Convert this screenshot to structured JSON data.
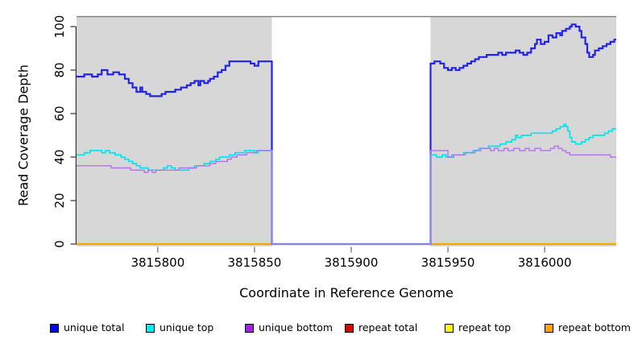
{
  "chart_data": {
    "type": "line",
    "subtype": "step",
    "title": "",
    "xlabel": "Coordinate in Reference Genome",
    "ylabel": "Read Coverage Depth",
    "xlim": [
      3815758,
      3816037
    ],
    "ylim": [
      0,
      104.8
    ],
    "x_ticks": [
      3815800,
      3815850,
      3815900,
      3815950,
      3816000
    ],
    "x_tick_labels": [
      "3815800",
      "3815850",
      "3815900",
      "3815950",
      "3816000"
    ],
    "y_ticks": [
      0,
      20,
      40,
      60,
      80,
      100
    ],
    "y_tick_labels": [
      "0",
      "20",
      "40",
      "60",
      "80",
      "100"
    ],
    "grid": false,
    "panel_background": "#d7d7d7",
    "panel_top_border_color": "#7f7f7f",
    "gap_region": {
      "x_start": 3815859,
      "x_end": 3815941,
      "fill": "#ffffff"
    },
    "legend_position": "bottom",
    "series": [
      {
        "name": "repeat total",
        "color": "#e10000",
        "width": 1.2,
        "under_gap": true,
        "points": [
          [
            3815758,
            0
          ],
          [
            3816037,
            0
          ]
        ]
      },
      {
        "name": "repeat top",
        "color": "#fdfd00",
        "width": 1.2,
        "under_gap": true,
        "points": [
          [
            3815758,
            0
          ],
          [
            3816037,
            0
          ]
        ]
      },
      {
        "name": "repeat bottom",
        "color": "#ffa500",
        "width": 2.2,
        "under_gap": true,
        "points": [
          [
            3815758,
            0
          ],
          [
            3816037,
            0
          ]
        ]
      },
      {
        "name": "unique total",
        "color": "#2222e8",
        "width": 2.2,
        "under_gap": false,
        "points": [
          [
            3815758,
            77
          ],
          [
            3815762,
            78
          ],
          [
            3815766,
            77
          ],
          [
            3815769,
            78
          ],
          [
            3815771,
            80
          ],
          [
            3815774,
            78
          ],
          [
            3815777,
            79
          ],
          [
            3815780,
            78
          ],
          [
            3815783,
            76
          ],
          [
            3815785,
            74
          ],
          [
            3815787,
            72
          ],
          [
            3815789,
            70
          ],
          [
            3815791,
            72
          ],
          [
            3815792,
            70
          ],
          [
            3815794,
            69
          ],
          [
            3815796,
            68
          ],
          [
            3815802,
            69
          ],
          [
            3815804,
            70
          ],
          [
            3815807,
            70
          ],
          [
            3815809,
            71
          ],
          [
            3815812,
            72
          ],
          [
            3815815,
            73
          ],
          [
            3815817,
            74
          ],
          [
            3815819,
            75
          ],
          [
            3815821,
            73
          ],
          [
            3815822,
            75
          ],
          [
            3815824,
            74
          ],
          [
            3815826,
            75
          ],
          [
            3815827,
            76
          ],
          [
            3815829,
            77
          ],
          [
            3815831,
            79
          ],
          [
            3815833,
            80
          ],
          [
            3815835,
            82
          ],
          [
            3815837,
            84
          ],
          [
            3815846,
            84
          ],
          [
            3815848,
            83
          ],
          [
            3815850,
            82
          ],
          [
            3815852,
            84
          ],
          [
            3815859,
            0
          ],
          [
            3815941,
            83
          ],
          [
            3815943,
            84
          ],
          [
            3815946,
            83
          ],
          [
            3815948,
            81
          ],
          [
            3815950,
            80
          ],
          [
            3815952,
            81
          ],
          [
            3815954,
            80
          ],
          [
            3815956,
            81
          ],
          [
            3815958,
            82
          ],
          [
            3815960,
            83
          ],
          [
            3815962,
            84
          ],
          [
            3815964,
            85
          ],
          [
            3815966,
            86
          ],
          [
            3815970,
            87
          ],
          [
            3815974,
            87
          ],
          [
            3815976,
            88
          ],
          [
            3815978,
            87
          ],
          [
            3815980,
            88
          ],
          [
            3815983,
            88
          ],
          [
            3815985,
            89
          ],
          [
            3815987,
            88
          ],
          [
            3815989,
            87
          ],
          [
            3815991,
            88
          ],
          [
            3815993,
            90
          ],
          [
            3815995,
            92
          ],
          [
            3815996,
            94
          ],
          [
            3815998,
            92
          ],
          [
            3816000,
            93
          ],
          [
            3816002,
            96
          ],
          [
            3816004,
            95
          ],
          [
            3816006,
            97
          ],
          [
            3816008,
            96
          ],
          [
            3816009,
            98
          ],
          [
            3816011,
            99
          ],
          [
            3816013,
            100
          ],
          [
            3816014,
            101
          ],
          [
            3816016,
            100
          ],
          [
            3816018,
            98
          ],
          [
            3816019,
            95
          ],
          [
            3816021,
            92
          ],
          [
            3816022,
            88
          ],
          [
            3816023,
            86
          ],
          [
            3816025,
            87
          ],
          [
            3816026,
            89
          ],
          [
            3816028,
            90
          ],
          [
            3816030,
            91
          ],
          [
            3816032,
            92
          ],
          [
            3816034,
            93
          ],
          [
            3816036,
            94
          ],
          [
            3816037,
            94
          ]
        ]
      },
      {
        "name": "unique top",
        "color": "#00e5ee",
        "width": 1.7,
        "under_gap": false,
        "points": [
          [
            3815758,
            41
          ],
          [
            3815762,
            42
          ],
          [
            3815765,
            43
          ],
          [
            3815769,
            43
          ],
          [
            3815771,
            42
          ],
          [
            3815773,
            43
          ],
          [
            3815775,
            42
          ],
          [
            3815778,
            41
          ],
          [
            3815781,
            40
          ],
          [
            3815783,
            39
          ],
          [
            3815785,
            38
          ],
          [
            3815787,
            37
          ],
          [
            3815789,
            36
          ],
          [
            3815791,
            35
          ],
          [
            3815795,
            34
          ],
          [
            3815801,
            34
          ],
          [
            3815803,
            35
          ],
          [
            3815805,
            36
          ],
          [
            3815807,
            35
          ],
          [
            3815809,
            34
          ],
          [
            3815813,
            34
          ],
          [
            3815816,
            35
          ],
          [
            3815819,
            36
          ],
          [
            3815822,
            36
          ],
          [
            3815824,
            37
          ],
          [
            3815827,
            38
          ],
          [
            3815830,
            39
          ],
          [
            3815832,
            40
          ],
          [
            3815835,
            40
          ],
          [
            3815837,
            41
          ],
          [
            3815840,
            42
          ],
          [
            3815843,
            42
          ],
          [
            3815845,
            43
          ],
          [
            3815848,
            43
          ],
          [
            3815850,
            42
          ],
          [
            3815852,
            43
          ],
          [
            3815859,
            0
          ],
          [
            3815941,
            41
          ],
          [
            3815944,
            40
          ],
          [
            3815947,
            41
          ],
          [
            3815949,
            40
          ],
          [
            3815952,
            41
          ],
          [
            3815956,
            41
          ],
          [
            3815958,
            42
          ],
          [
            3815961,
            42
          ],
          [
            3815963,
            43
          ],
          [
            3815966,
            44
          ],
          [
            3815969,
            44
          ],
          [
            3815971,
            45
          ],
          [
            3815974,
            45
          ],
          [
            3815977,
            46
          ],
          [
            3815980,
            47
          ],
          [
            3815983,
            48
          ],
          [
            3815985,
            50
          ],
          [
            3815986,
            49
          ],
          [
            3815988,
            50
          ],
          [
            3815991,
            50
          ],
          [
            3815993,
            51
          ],
          [
            3816000,
            51
          ],
          [
            3816004,
            52
          ],
          [
            3816006,
            53
          ],
          [
            3816008,
            54
          ],
          [
            3816010,
            55
          ],
          [
            3816011,
            54
          ],
          [
            3816012,
            52
          ],
          [
            3816013,
            49
          ],
          [
            3816014,
            47
          ],
          [
            3816016,
            46
          ],
          [
            3816019,
            47
          ],
          [
            3816021,
            48
          ],
          [
            3816023,
            49
          ],
          [
            3816025,
            50
          ],
          [
            3816028,
            50
          ],
          [
            3816031,
            51
          ],
          [
            3816033,
            52
          ],
          [
            3816035,
            53
          ],
          [
            3816037,
            53
          ]
        ]
      },
      {
        "name": "unique bottom",
        "color": "#b273e8",
        "width": 1.4,
        "under_gap": false,
        "points": [
          [
            3815758,
            36
          ],
          [
            3815764,
            36
          ],
          [
            3815770,
            36
          ],
          [
            3815776,
            35
          ],
          [
            3815782,
            35
          ],
          [
            3815786,
            34
          ],
          [
            3815791,
            34
          ],
          [
            3815793,
            33
          ],
          [
            3815795,
            34
          ],
          [
            3815797,
            33
          ],
          [
            3815799,
            34
          ],
          [
            3815806,
            34
          ],
          [
            3815811,
            35
          ],
          [
            3815816,
            35
          ],
          [
            3815820,
            36
          ],
          [
            3815824,
            36
          ],
          [
            3815827,
            37
          ],
          [
            3815830,
            38
          ],
          [
            3815833,
            38
          ],
          [
            3815836,
            39
          ],
          [
            3815838,
            40
          ],
          [
            3815841,
            41
          ],
          [
            3815844,
            41
          ],
          [
            3815846,
            42
          ],
          [
            3815849,
            42
          ],
          [
            3815851,
            43
          ],
          [
            3815859,
            0
          ],
          [
            3815941,
            43
          ],
          [
            3815948,
            43
          ],
          [
            3815950,
            40
          ],
          [
            3815953,
            41
          ],
          [
            3815956,
            41
          ],
          [
            3815959,
            42
          ],
          [
            3815962,
            42
          ],
          [
            3815964,
            43
          ],
          [
            3815967,
            44
          ],
          [
            3815970,
            44
          ],
          [
            3815972,
            43
          ],
          [
            3815974,
            44
          ],
          [
            3815976,
            43
          ],
          [
            3815979,
            44
          ],
          [
            3815981,
            43
          ],
          [
            3815984,
            44
          ],
          [
            3815987,
            43
          ],
          [
            3815990,
            44
          ],
          [
            3815992,
            43
          ],
          [
            3815995,
            44
          ],
          [
            3815998,
            43
          ],
          [
            3816000,
            43
          ],
          [
            3816003,
            44
          ],
          [
            3816005,
            45
          ],
          [
            3816007,
            44
          ],
          [
            3816009,
            43
          ],
          [
            3816011,
            42
          ],
          [
            3816013,
            41
          ],
          [
            3816017,
            41
          ],
          [
            3816022,
            41
          ],
          [
            3816027,
            41
          ],
          [
            3816031,
            41
          ],
          [
            3816034,
            40
          ],
          [
            3816037,
            40
          ]
        ]
      }
    ]
  },
  "legend": {
    "items": [
      {
        "label": "unique total",
        "color": "#0202f5"
      },
      {
        "label": "unique top",
        "color": "#00eeee"
      },
      {
        "label": "unique bottom",
        "color": "#a020f0"
      },
      {
        "label": "repeat total",
        "color": "#e10000"
      },
      {
        "label": "repeat top",
        "color": "#fdfd00"
      },
      {
        "label": "repeat bottom",
        "color": "#ffa500"
      }
    ]
  }
}
